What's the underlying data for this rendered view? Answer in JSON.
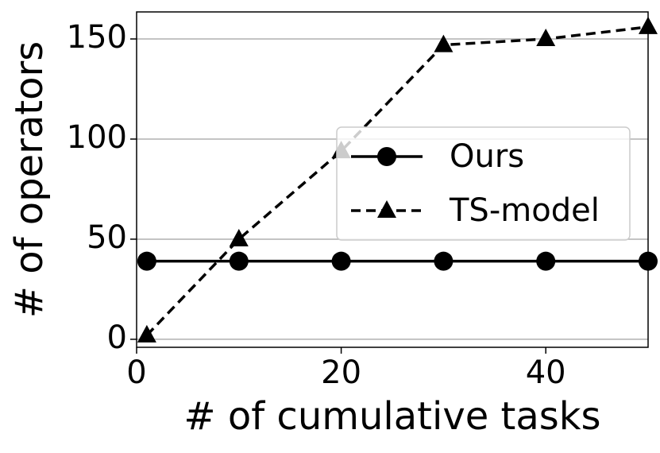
{
  "chart_data": {
    "type": "line",
    "x_label": "# of cumulative tasks",
    "y_label": "# of operators",
    "x": [
      1,
      10,
      20,
      30,
      40,
      50
    ],
    "series": [
      {
        "name": "Ours",
        "color": "#000000",
        "linestyle": "solid",
        "marker": "circle",
        "values": [
          39,
          39,
          39,
          39,
          39,
          39
        ]
      },
      {
        "name": "TS-model",
        "color": "#000000",
        "linestyle": "dashed",
        "marker": "triangle",
        "values": [
          2,
          50,
          94,
          147,
          150,
          156
        ]
      }
    ],
    "xlim": [
      0,
      50
    ],
    "ylim": [
      -4,
      163.5
    ],
    "xticks": [
      0,
      20,
      40
    ],
    "yticks": [
      0,
      50,
      100,
      150
    ],
    "grid": true,
    "legend": "center right"
  }
}
